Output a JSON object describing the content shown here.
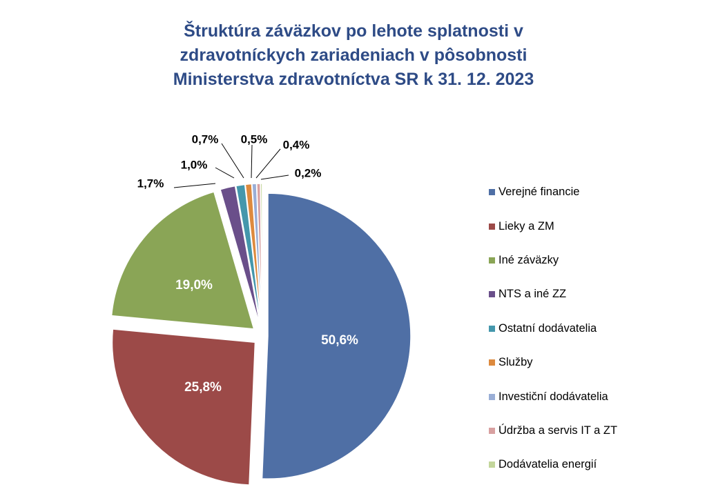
{
  "chart_data": {
    "type": "pie",
    "title_lines": [
      "Štruktúra záväzkov po lehote splatnosti v",
      "zdravotníckych zariadeniach v pôsobnosti",
      "Ministerstva zdravotníctva SR  k 31. 12. 2023"
    ],
    "slices": [
      {
        "name": "Verejné financie",
        "value": 50.6,
        "label": "50,6%",
        "color": "#4f6fa5"
      },
      {
        "name": "Lieky a ZM",
        "value": 25.8,
        "label": "25,8%",
        "color": "#9c4a48"
      },
      {
        "name": "Iné záväzky",
        "value": 19.0,
        "label": "19,0%",
        "color": "#8aa556"
      },
      {
        "name": "NTS a iné ZZ",
        "value": 1.7,
        "label": "1,7%",
        "color": "#6a4f8a"
      },
      {
        "name": "Ostatní dodávatelia",
        "value": 1.0,
        "label": "1,0%",
        "color": "#4497ac"
      },
      {
        "name": "Služby",
        "value": 0.7,
        "label": "0,7%",
        "color": "#dd8a3e"
      },
      {
        "name": "Investiční dodávatelia",
        "value": 0.5,
        "label": "0,5%",
        "color": "#9aaed6"
      },
      {
        "name": "Údržba a servis IT a ZT",
        "value": 0.4,
        "label": "0,4%",
        "color": "#d8a0a0"
      },
      {
        "name": "Dodávatelia energií",
        "value": 0.2,
        "label": "0,2%",
        "color": "#c3d69b"
      }
    ],
    "legend_position": "right"
  }
}
